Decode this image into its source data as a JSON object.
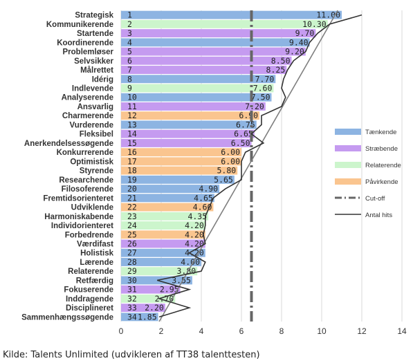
{
  "source_note": "Kilde: Talents Unlimited (udvikleren af TT38 talenttesten)",
  "colors": {
    "Tænkende": "#8db4e2",
    "Stræbende": "#c59bf0",
    "Relaterende": "#ccf5cc",
    "Påvirkende": "#fac58f",
    "cutoff": "#666666",
    "hits": "#333333",
    "grid": "#d9d9d9",
    "trend": "#7f7f7f"
  },
  "chart_data": {
    "type": "bar",
    "orientation": "horizontal",
    "title": "",
    "xlabel": "",
    "ylabel": "",
    "xlim": [
      0,
      14
    ],
    "x_ticks": [
      0,
      2,
      4,
      6,
      8,
      10,
      12,
      14
    ],
    "grid": "vertical",
    "legend_position": "right",
    "legend": [
      {
        "label": "Tænkende",
        "kind": "bar",
        "color_key": "Tænkende"
      },
      {
        "label": "Stræbende",
        "kind": "bar",
        "color_key": "Stræbende"
      },
      {
        "label": "Relaterende",
        "kind": "bar",
        "color_key": "Relaterende"
      },
      {
        "label": "Påvirkende",
        "kind": "bar",
        "color_key": "Påvirkende"
      },
      {
        "label": "Cut-off",
        "kind": "dashdot",
        "color_key": "cutoff"
      },
      {
        "label": "Antal hits",
        "kind": "line",
        "color_key": "hits"
      }
    ],
    "cutoff_value": 6.5,
    "bars": [
      {
        "name": "Strategisk",
        "rank": 1,
        "value": 11.0,
        "label": "11.00",
        "group": "Tænkende"
      },
      {
        "name": "Kommunikerende",
        "rank": 2,
        "value": 10.3,
        "label": "10.30",
        "group": "Relaterende"
      },
      {
        "name": "Startende",
        "rank": 3,
        "value": 9.7,
        "label": "9.70",
        "group": "Stræbende"
      },
      {
        "name": "Koordinerende",
        "rank": 4,
        "value": 9.4,
        "label": "9.40",
        "group": "Tænkende"
      },
      {
        "name": "Problemløser",
        "rank": 5,
        "value": 9.2,
        "label": "9.20",
        "group": "Stræbende"
      },
      {
        "name": "Selvsikker",
        "rank": 6,
        "value": 8.5,
        "label": "8.50",
        "group": "Stræbende"
      },
      {
        "name": "Målrettet",
        "rank": 7,
        "value": 8.25,
        "label": "8.25",
        "group": "Stræbende"
      },
      {
        "name": "Idérig",
        "rank": 8,
        "value": 7.7,
        "label": "7.70",
        "group": "Tænkende"
      },
      {
        "name": "Indlevende",
        "rank": 9,
        "value": 7.6,
        "label": "7.60",
        "group": "Relaterende"
      },
      {
        "name": "Analyserende",
        "rank": 10,
        "value": 7.5,
        "label": "7.50",
        "group": "Tænkende"
      },
      {
        "name": "Ansvarlig",
        "rank": 11,
        "value": 7.2,
        "label": "7.20",
        "group": "Stræbende"
      },
      {
        "name": "Charmerende",
        "rank": 12,
        "value": 6.9,
        "label": "6.90",
        "group": "Påvirkende"
      },
      {
        "name": "Vurderende",
        "rank": 13,
        "value": 6.75,
        "label": "6.75",
        "group": "Tænkende"
      },
      {
        "name": "Fleksibel",
        "rank": 14,
        "value": 6.65,
        "label": "6.65",
        "group": "Stræbende"
      },
      {
        "name": "Anerkendelsessøgende",
        "rank": 15,
        "value": 6.5,
        "label": "6.50",
        "group": "Stræbende"
      },
      {
        "name": "Konkurrerende",
        "rank": 16,
        "value": 6.0,
        "label": "6.00",
        "group": "Påvirkende"
      },
      {
        "name": "Optimistisk",
        "rank": 17,
        "value": 6.0,
        "label": "6.00",
        "group": "Påvirkende"
      },
      {
        "name": "Styrende",
        "rank": 18,
        "value": 5.8,
        "label": "5.80",
        "group": "Påvirkende"
      },
      {
        "name": "Researchende",
        "rank": 19,
        "value": 5.65,
        "label": "5.65",
        "group": "Tænkende"
      },
      {
        "name": "Filosoferende",
        "rank": 20,
        "value": 4.9,
        "label": "4.90",
        "group": "Tænkende"
      },
      {
        "name": "Fremtidsorienteret",
        "rank": 21,
        "value": 4.65,
        "label": "4.65",
        "group": "Tænkende"
      },
      {
        "name": "Udviklende",
        "rank": 22,
        "value": 4.6,
        "label": "4.60",
        "group": "Påvirkende"
      },
      {
        "name": "Harmoniskabende",
        "rank": 23,
        "value": 4.35,
        "label": "4.35",
        "group": "Relaterende"
      },
      {
        "name": "Individorienteret",
        "rank": 24,
        "value": 4.2,
        "label": "4.20",
        "group": "Relaterende"
      },
      {
        "name": "Forbedrende",
        "rank": 25,
        "value": 4.2,
        "label": "4.20",
        "group": "Påvirkende"
      },
      {
        "name": "Værdifast",
        "rank": 26,
        "value": 4.2,
        "label": "4.20",
        "group": "Stræbende"
      },
      {
        "name": "Holistisk",
        "rank": 27,
        "value": 4.2,
        "label": "4.20",
        "group": "Tænkende"
      },
      {
        "name": "Lærende",
        "rank": 28,
        "value": 4.0,
        "label": "4.00",
        "group": "Tænkende"
      },
      {
        "name": "Relaterende",
        "rank": 29,
        "value": 3.8,
        "label": "3.80",
        "group": "Relaterende"
      },
      {
        "name": "Retfærdig",
        "rank": 30,
        "value": 3.55,
        "label": "3.55",
        "group": "Tænkende"
      },
      {
        "name": "Fokuserende",
        "rank": 31,
        "value": 2.95,
        "label": "2.95",
        "group": "Stræbende"
      },
      {
        "name": "Inddragende",
        "rank": 32,
        "value": 2.7,
        "label": "2.70",
        "group": "Relaterende"
      },
      {
        "name": "Disciplineret",
        "rank": 33,
        "value": 2.2,
        "label": "2.20",
        "group": "Stræbende"
      },
      {
        "name": "Sammenhængssøgende",
        "rank": 34,
        "value": 1.85,
        "label": "1.85",
        "group": "Tænkende"
      }
    ],
    "antal_hits": [
      12.0,
      10.4,
      9.8,
      9.4,
      9.2,
      8.6,
      8.3,
      8.1,
      8.0,
      8.2,
      8.0,
      7.0,
      7.0,
      6.5,
      7.1,
      6.2,
      6.0,
      6.0,
      6.0,
      5.2,
      4.6,
      4.4,
      4.2,
      4.2,
      4.1,
      4.2,
      3.4,
      4.2,
      4.0,
      1.8,
      3.4,
      1.9,
      3.4,
      1.9
    ],
    "trend_line": [
      {
        "rank": 0.5,
        "value": 10.8
      },
      {
        "rank": 34.5,
        "value": 1.9
      }
    ]
  }
}
